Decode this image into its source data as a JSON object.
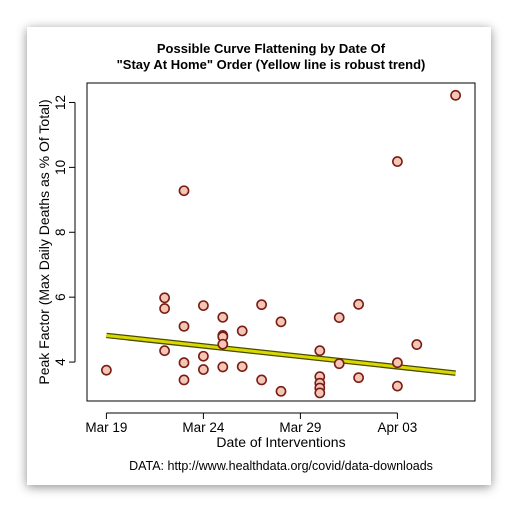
{
  "chart_data": {
    "type": "scatter",
    "title_lines": [
      "Possible Curve Flattening by Date Of",
      "\"Stay At Home\" Order (Yellow line is robust trend)"
    ],
    "xlabel": "Date of Interventions",
    "ylabel": "Peak Factor (Max Daily Deaths as % Of Total)",
    "source": "DATA: http://www.healthdata.org/covid/data-downloads",
    "x_ticks": [
      {
        "date": "2020-03-19",
        "label": "Mar 19"
      },
      {
        "date": "2020-03-24",
        "label": "Mar 24"
      },
      {
        "date": "2020-03-29",
        "label": "Mar 29"
      },
      {
        "date": "2020-04-03",
        "label": "Apr 03"
      }
    ],
    "y_ticks": [
      4,
      6,
      8,
      10,
      12
    ],
    "xlim": [
      "2020-03-18",
      "2020-04-07"
    ],
    "ylim": [
      2.8,
      12.6
    ],
    "points": [
      {
        "x": "2020-03-19",
        "y": 3.75
      },
      {
        "x": "2020-03-22",
        "y": 4.35
      },
      {
        "x": "2020-03-22",
        "y": 5.65
      },
      {
        "x": "2020-03-22",
        "y": 5.98
      },
      {
        "x": "2020-03-23",
        "y": 9.28
      },
      {
        "x": "2020-03-23",
        "y": 5.1
      },
      {
        "x": "2020-03-23",
        "y": 3.98
      },
      {
        "x": "2020-03-23",
        "y": 3.45
      },
      {
        "x": "2020-03-24",
        "y": 5.74
      },
      {
        "x": "2020-03-24",
        "y": 4.18
      },
      {
        "x": "2020-03-24",
        "y": 3.77
      },
      {
        "x": "2020-03-25",
        "y": 5.38
      },
      {
        "x": "2020-03-25",
        "y": 4.82
      },
      {
        "x": "2020-03-25",
        "y": 4.78
      },
      {
        "x": "2020-03-25",
        "y": 4.55
      },
      {
        "x": "2020-03-25",
        "y": 3.85
      },
      {
        "x": "2020-03-26",
        "y": 4.96
      },
      {
        "x": "2020-03-26",
        "y": 3.86
      },
      {
        "x": "2020-03-27",
        "y": 5.77
      },
      {
        "x": "2020-03-27",
        "y": 3.45
      },
      {
        "x": "2020-03-28",
        "y": 5.24
      },
      {
        "x": "2020-03-28",
        "y": 3.1
      },
      {
        "x": "2020-03-30",
        "y": 4.35
      },
      {
        "x": "2020-03-30",
        "y": 3.55
      },
      {
        "x": "2020-03-30",
        "y": 3.35
      },
      {
        "x": "2020-03-30",
        "y": 3.2
      },
      {
        "x": "2020-03-30",
        "y": 3.05
      },
      {
        "x": "2020-03-31",
        "y": 5.37
      },
      {
        "x": "2020-03-31",
        "y": 3.95
      },
      {
        "x": "2020-04-01",
        "y": 5.78
      },
      {
        "x": "2020-04-01",
        "y": 3.52
      },
      {
        "x": "2020-04-03",
        "y": 10.18
      },
      {
        "x": "2020-04-03",
        "y": 3.98
      },
      {
        "x": "2020-04-03",
        "y": 3.26
      },
      {
        "x": "2020-04-04",
        "y": 4.54
      },
      {
        "x": "2020-04-06",
        "y": 12.22
      }
    ],
    "trend": [
      {
        "x": "2020-03-19",
        "y": 4.82
      },
      {
        "x": "2020-04-06",
        "y": 3.66
      }
    ],
    "colors": {
      "point_fill": "#f4c6b5",
      "point_stroke": "#7a1c14",
      "trend": "#d9d900",
      "trend_outline": "#4a4a00"
    },
    "grid": false
  }
}
